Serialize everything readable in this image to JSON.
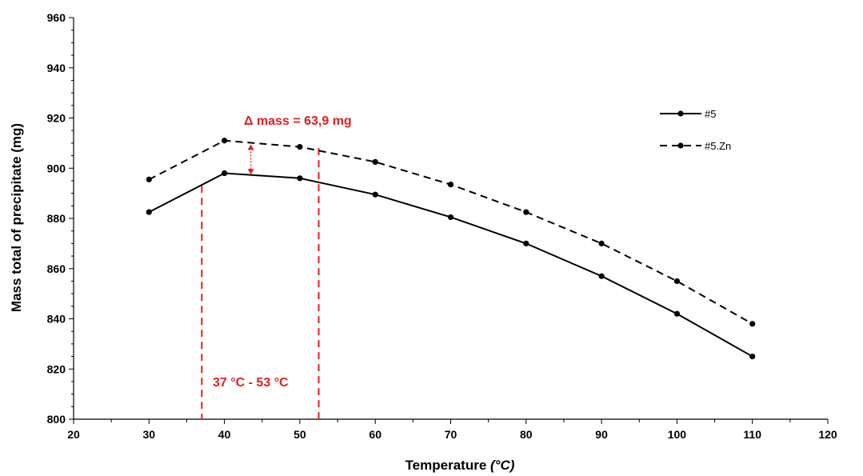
{
  "chart_data": {
    "type": "line",
    "xlabel": "Temperature",
    "xlabel_unit": "(°C)",
    "ylabel": "Mass total of precipitate (mg)",
    "xlim": [
      20,
      120
    ],
    "ylim": [
      800,
      960
    ],
    "x_ticks": [
      20,
      30,
      40,
      50,
      60,
      70,
      80,
      90,
      100,
      110,
      120
    ],
    "y_ticks": [
      800,
      820,
      840,
      860,
      880,
      900,
      920,
      940,
      960
    ],
    "grid": false,
    "legend_position": "right",
    "x": [
      30,
      40,
      50,
      60,
      70,
      80,
      90,
      100,
      110
    ],
    "series": [
      {
        "name": "#5",
        "style": "solid",
        "color": "#000000",
        "values": [
          882.5,
          898,
          896,
          889.5,
          880.5,
          870,
          857,
          842,
          825
        ]
      },
      {
        "name": "#5.Zn",
        "style": "dashed",
        "color": "#000000",
        "values": [
          895.5,
          911,
          908.5,
          902.5,
          893.5,
          882.5,
          870,
          855,
          838
        ]
      }
    ],
    "annotations": {
      "delta_label": "Δ mass = 63,9 mg",
      "range_label": "37 °C - 53 °C",
      "range_lines_x": [
        37,
        52.5
      ],
      "delta_arrow_x": 43.5,
      "color": "#e02020"
    }
  }
}
